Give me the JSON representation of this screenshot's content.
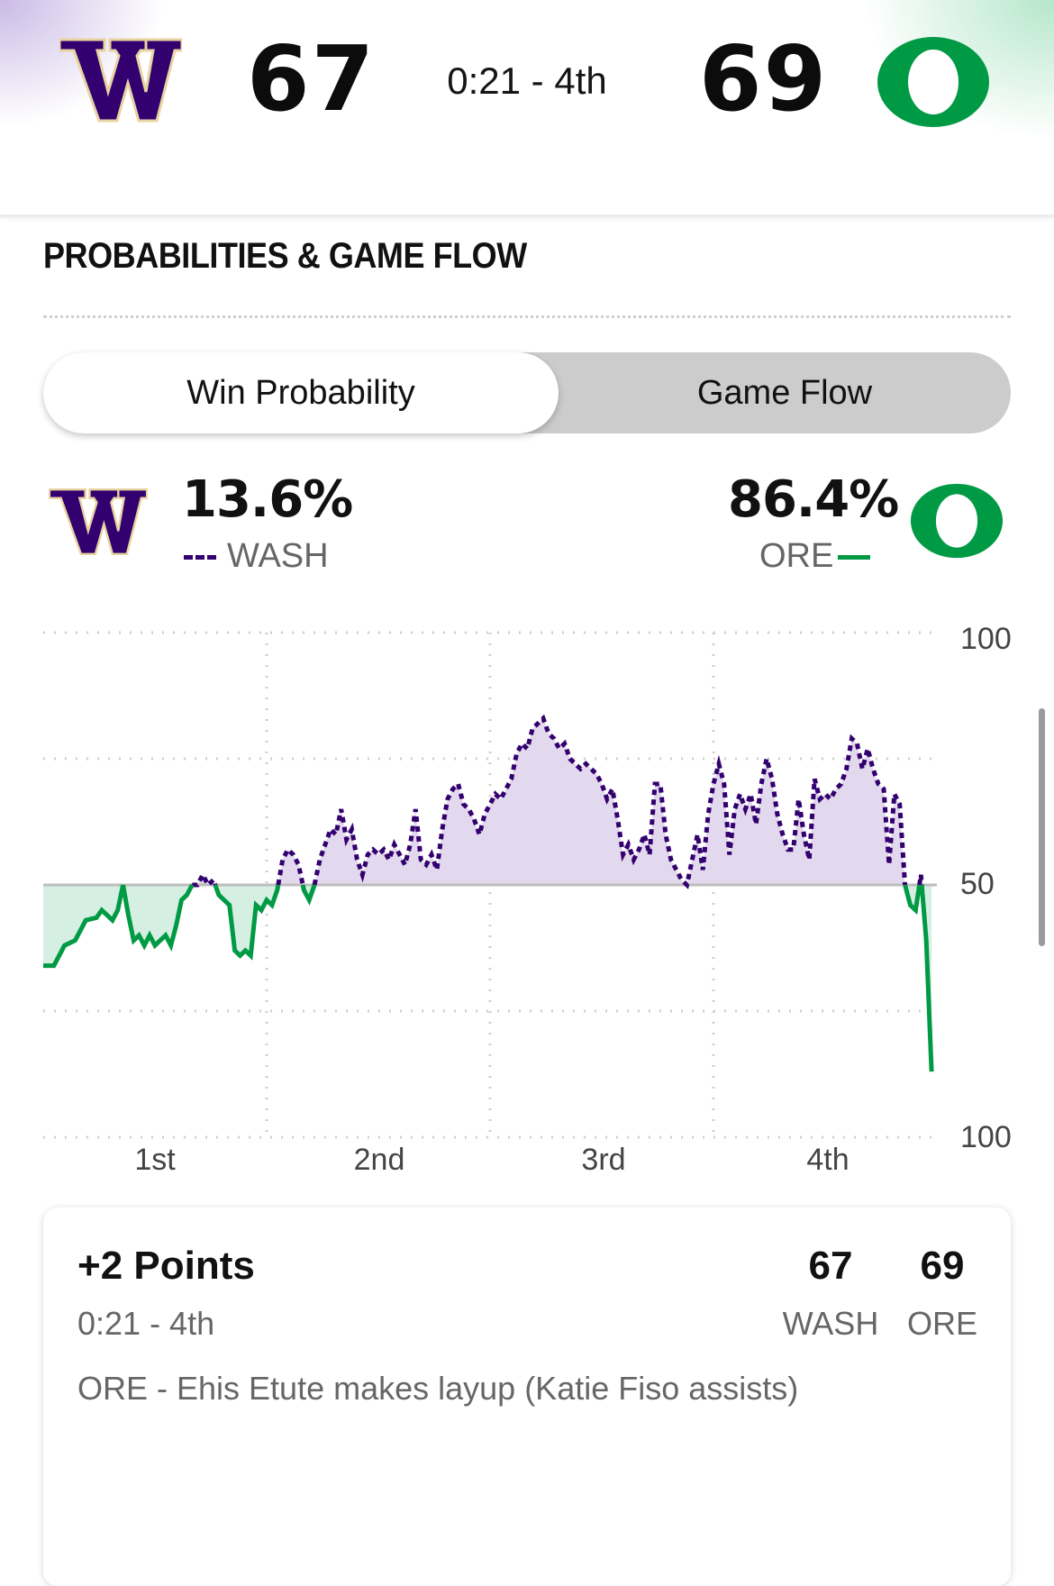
{
  "header": {
    "away": {
      "abbr": "WASH",
      "score": "67",
      "logo_letter": "W",
      "logo_icon": "washington-w-logo"
    },
    "home": {
      "abbr": "ORE",
      "score": "69",
      "logo_letter": "O",
      "logo_icon": "oregon-o-logo"
    },
    "clock": "0:21 - 4th"
  },
  "section_title": "PROBABILITIES & GAME FLOW",
  "toggle": {
    "options": [
      "Win Probability",
      "Game Flow"
    ],
    "selected": "Win Probability"
  },
  "win_probability": {
    "away": {
      "pct": "13.6%",
      "abbr": "WASH"
    },
    "home": {
      "pct": "86.4%",
      "abbr": "ORE"
    }
  },
  "colors": {
    "washington_purple": "#33006f",
    "washington_gold": "#e8d3a2",
    "oregon_green": "#009a44",
    "purple_fill": "#e3d9ee",
    "green_fill": "#d5efe2"
  },
  "chart_data": {
    "type": "line",
    "y_labels": {
      "top": "100",
      "middle": "50",
      "bottom": "100"
    },
    "ylim": [
      0,
      100
    ],
    "x_labels": [
      "1st",
      "2nd",
      "3rd",
      "4th"
    ],
    "grid": true,
    "series": [
      {
        "name": "WASH",
        "style": "dotted",
        "color": "#33006f"
      },
      {
        "name": "ORE",
        "style": "solid",
        "color": "#009a44"
      }
    ],
    "points": [
      [
        0,
        34
      ],
      [
        1,
        34
      ],
      [
        1.5,
        36
      ],
      [
        2,
        38
      ],
      [
        3,
        39
      ],
      [
        3.5,
        41
      ],
      [
        4,
        43
      ],
      [
        5,
        43.5
      ],
      [
        5.5,
        45
      ],
      [
        6,
        44
      ],
      [
        6.5,
        43
      ],
      [
        7,
        45
      ],
      [
        7.5,
        50
      ],
      [
        8,
        44
      ],
      [
        8.5,
        39
      ],
      [
        9,
        40
      ],
      [
        9.5,
        38
      ],
      [
        10,
        40
      ],
      [
        10.5,
        38
      ],
      [
        11,
        39
      ],
      [
        11.5,
        40
      ],
      [
        12,
        38
      ],
      [
        12.5,
        42
      ],
      [
        13,
        47
      ],
      [
        13.5,
        48
      ],
      [
        14,
        50
      ],
      [
        14.5,
        50
      ],
      [
        15,
        52
      ],
      [
        15.5,
        50
      ],
      [
        16,
        51
      ],
      [
        16.5,
        48
      ],
      [
        17,
        47
      ],
      [
        17.5,
        46
      ],
      [
        18,
        37
      ],
      [
        18.5,
        36
      ],
      [
        19,
        37
      ],
      [
        19.5,
        36
      ],
      [
        20,
        46
      ],
      [
        20.5,
        45
      ],
      [
        21,
        47
      ],
      [
        21.5,
        46
      ],
      [
        22,
        49
      ],
      [
        22.5,
        55
      ],
      [
        23,
        57
      ],
      [
        23.5,
        56
      ],
      [
        24,
        54
      ],
      [
        24.5,
        49
      ],
      [
        25,
        47
      ],
      [
        25.5,
        50
      ],
      [
        26,
        55
      ],
      [
        26.5,
        58
      ],
      [
        27,
        61
      ],
      [
        27.5,
        60
      ],
      [
        28,
        65
      ],
      [
        28.5,
        59
      ],
      [
        29,
        61
      ],
      [
        29.5,
        55
      ],
      [
        30,
        52
      ],
      [
        30.5,
        56
      ],
      [
        31,
        57
      ],
      [
        31.5,
        56
      ],
      [
        32,
        57
      ],
      [
        32.5,
        55
      ],
      [
        33,
        58
      ],
      [
        33.5,
        56
      ],
      [
        34,
        54
      ],
      [
        34.5,
        58
      ],
      [
        35,
        65
      ],
      [
        35.5,
        55
      ],
      [
        36,
        54
      ],
      [
        36.5,
        56
      ],
      [
        37,
        53
      ],
      [
        37.5,
        61
      ],
      [
        38,
        67
      ],
      [
        38.5,
        69
      ],
      [
        39,
        70
      ],
      [
        39.5,
        66
      ],
      [
        40,
        65
      ],
      [
        40.5,
        63
      ],
      [
        41,
        60
      ],
      [
        41.5,
        64
      ],
      [
        42,
        66
      ],
      [
        42.5,
        68
      ],
      [
        43,
        67
      ],
      [
        43.5,
        69
      ],
      [
        44,
        71
      ],
      [
        44.5,
        76
      ],
      [
        45,
        78
      ],
      [
        45.5,
        77
      ],
      [
        46,
        81
      ],
      [
        46.5,
        82
      ],
      [
        47,
        83
      ],
      [
        47.5,
        80
      ],
      [
        48,
        79
      ],
      [
        48.5,
        77
      ],
      [
        49,
        78
      ],
      [
        49.5,
        75
      ],
      [
        50,
        74
      ],
      [
        50.5,
        73
      ],
      [
        51,
        74
      ],
      [
        51.5,
        73
      ],
      [
        52,
        72
      ],
      [
        52.5,
        70
      ],
      [
        53,
        67
      ],
      [
        53.5,
        69
      ],
      [
        54,
        63
      ],
      [
        54.5,
        56
      ],
      [
        55,
        58
      ],
      [
        55.5,
        55
      ],
      [
        56,
        57
      ],
      [
        56.5,
        60
      ],
      [
        57,
        56
      ],
      [
        57.5,
        70
      ],
      [
        58,
        70
      ],
      [
        58.5,
        60
      ],
      [
        59,
        55
      ],
      [
        59.5,
        53
      ],
      [
        60,
        51
      ],
      [
        60.5,
        50
      ],
      [
        61,
        55
      ],
      [
        61.5,
        60
      ],
      [
        62,
        53
      ],
      [
        62.5,
        64
      ],
      [
        63,
        70
      ],
      [
        63.5,
        74
      ],
      [
        64,
        70
      ],
      [
        64.5,
        56
      ],
      [
        65,
        65
      ],
      [
        65.5,
        68
      ],
      [
        66,
        65
      ],
      [
        66.5,
        68
      ],
      [
        67,
        62
      ],
      [
        67.5,
        70
      ],
      [
        68,
        75
      ],
      [
        68.5,
        71
      ],
      [
        69,
        64
      ],
      [
        69.5,
        60
      ],
      [
        70,
        57
      ],
      [
        70.5,
        57
      ],
      [
        71,
        67
      ],
      [
        71.5,
        60
      ],
      [
        72,
        55
      ],
      [
        72.5,
        71
      ],
      [
        73,
        67
      ],
      [
        73.5,
        68
      ],
      [
        74,
        67
      ],
      [
        74.5,
        69
      ],
      [
        75,
        70
      ],
      [
        75.5,
        73
      ],
      [
        76,
        79
      ],
      [
        76.5,
        78
      ],
      [
        77,
        73
      ],
      [
        77.5,
        77
      ],
      [
        78,
        73
      ],
      [
        78.5,
        70
      ],
      [
        79,
        69
      ],
      [
        79.5,
        54
      ],
      [
        80,
        68
      ],
      [
        80.5,
        66
      ],
      [
        81,
        50
      ],
      [
        81.5,
        46
      ],
      [
        82,
        45
      ],
      [
        82.5,
        52
      ],
      [
        83,
        39
      ],
      [
        83.5,
        13
      ]
    ],
    "x_max": 84
  },
  "play": {
    "title": "+2 Points",
    "time": "0:21 - 4th",
    "description": "ORE - Ehis Etute makes layup (Katie Fiso assists)",
    "away_score": "67",
    "away_abbr": "WASH",
    "home_score": "69",
    "home_abbr": "ORE"
  }
}
